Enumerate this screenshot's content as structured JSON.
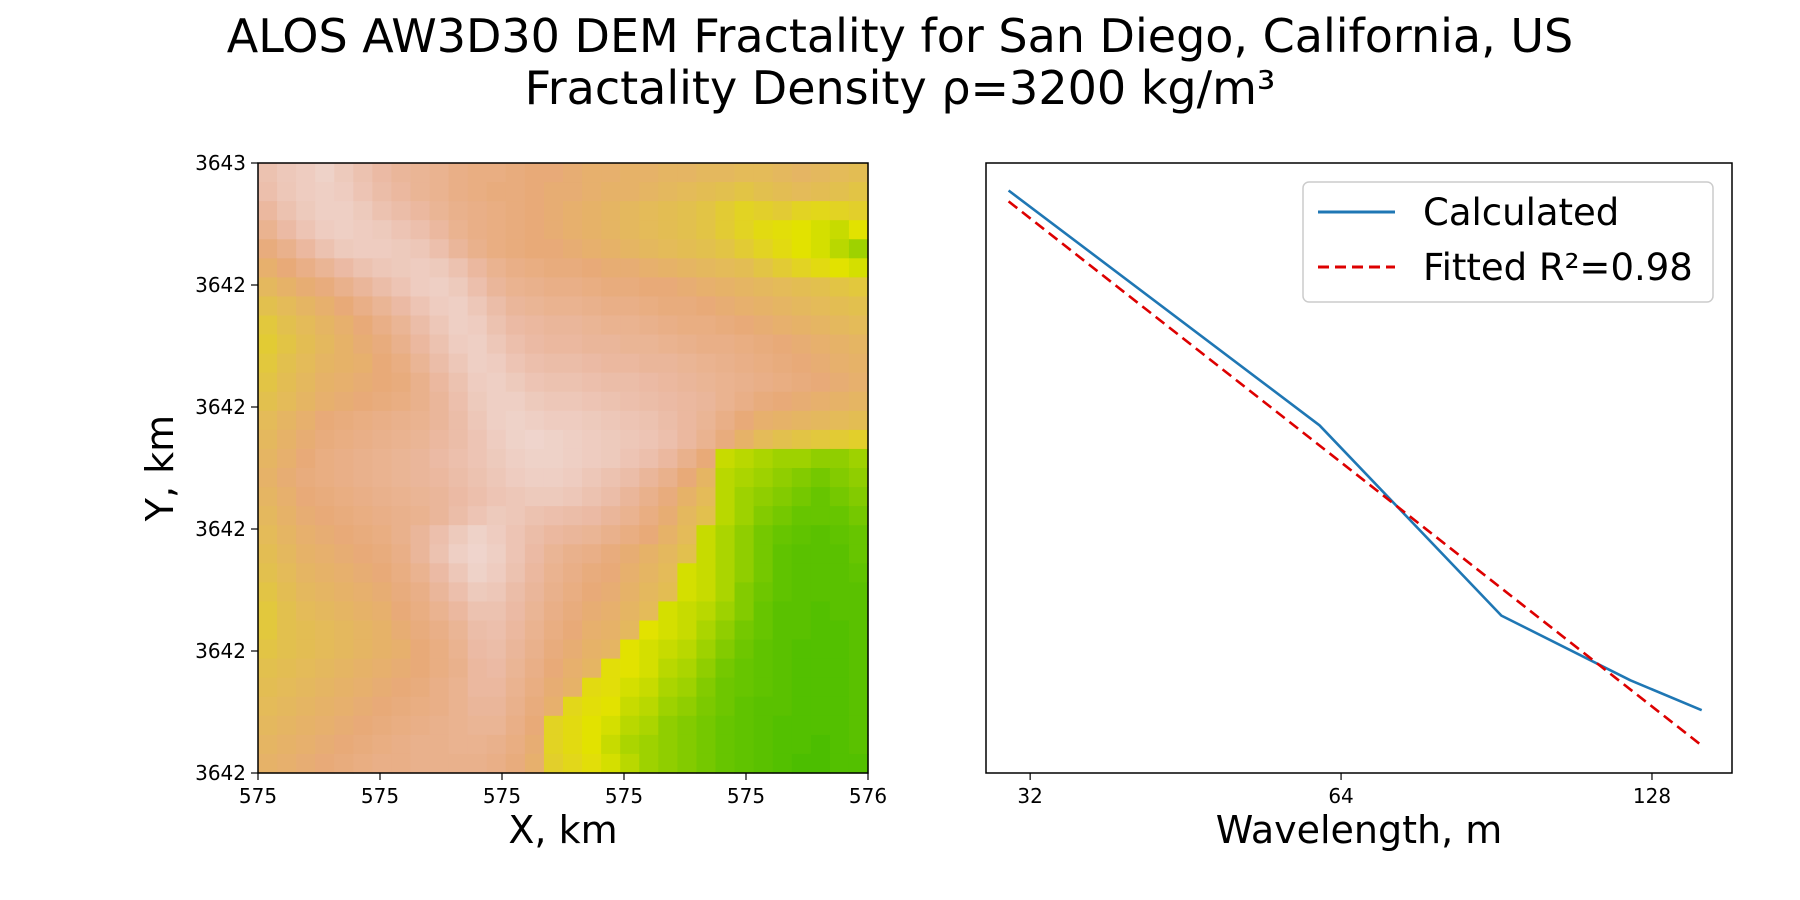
{
  "figure": {
    "title_line1": "ALOS AW3D30 DEM Fractality for San Diego, California, US",
    "title_line2": "Fractality Density ρ=3200 kg/m³"
  },
  "chart_data": [
    {
      "type": "heatmap",
      "xlabel": "X, km",
      "ylabel": "Y, km",
      "x_tick_labels": [
        "575",
        "575",
        "575",
        "575",
        "575",
        "576"
      ],
      "y_tick_labels": [
        "3643",
        "3642",
        "3642",
        "3642",
        "3642",
        "3642"
      ],
      "colormap": "gist_earth-like",
      "colors": {
        "high": "#f0dcd8",
        "mid_high": "#ebbaa4",
        "mid": "#e8aa78",
        "mid_low": "#e2c04e",
        "low": "#e2e200",
        "lowest": "#4cbe00"
      },
      "grid_size": [
        32,
        32
      ],
      "values": [
        [
          0.8,
          0.85,
          0.88,
          0.92,
          0.86,
          0.8,
          0.74,
          0.7,
          0.68,
          0.66,
          0.62,
          0.6,
          0.6,
          0.58,
          0.56,
          0.56,
          0.54,
          0.52,
          0.52,
          0.5,
          0.5,
          0.48,
          0.48,
          0.46,
          0.46,
          0.44,
          0.44,
          0.46,
          0.48,
          0.46,
          0.44,
          0.42
        ],
        [
          0.78,
          0.84,
          0.88,
          0.9,
          0.88,
          0.82,
          0.76,
          0.72,
          0.68,
          0.66,
          0.62,
          0.6,
          0.58,
          0.58,
          0.56,
          0.54,
          0.54,
          0.52,
          0.5,
          0.5,
          0.48,
          0.46,
          0.44,
          0.42,
          0.4,
          0.38,
          0.4,
          0.42,
          0.44,
          0.42,
          0.4,
          0.38
        ],
        [
          0.72,
          0.8,
          0.86,
          0.9,
          0.9,
          0.86,
          0.8,
          0.76,
          0.72,
          0.68,
          0.64,
          0.62,
          0.6,
          0.58,
          0.56,
          0.54,
          0.52,
          0.5,
          0.48,
          0.46,
          0.44,
          0.42,
          0.4,
          0.38,
          0.34,
          0.3,
          0.32,
          0.34,
          0.3,
          0.28,
          0.3,
          0.32
        ],
        [
          0.66,
          0.74,
          0.82,
          0.88,
          0.9,
          0.88,
          0.86,
          0.82,
          0.78,
          0.72,
          0.66,
          0.62,
          0.6,
          0.58,
          0.56,
          0.54,
          0.52,
          0.5,
          0.48,
          0.46,
          0.44,
          0.42,
          0.4,
          0.38,
          0.34,
          0.3,
          0.26,
          0.24,
          0.22,
          0.2,
          0.18,
          0.22
        ],
        [
          0.58,
          0.64,
          0.72,
          0.8,
          0.86,
          0.88,
          0.88,
          0.86,
          0.84,
          0.78,
          0.7,
          0.64,
          0.6,
          0.58,
          0.56,
          0.56,
          0.54,
          0.52,
          0.5,
          0.48,
          0.46,
          0.44,
          0.42,
          0.4,
          0.38,
          0.34,
          0.3,
          0.26,
          0.22,
          0.2,
          0.16,
          0.12
        ],
        [
          0.52,
          0.56,
          0.62,
          0.68,
          0.74,
          0.8,
          0.84,
          0.86,
          0.88,
          0.86,
          0.8,
          0.72,
          0.66,
          0.62,
          0.6,
          0.58,
          0.58,
          0.56,
          0.54,
          0.54,
          0.52,
          0.5,
          0.48,
          0.46,
          0.44,
          0.42,
          0.38,
          0.34,
          0.3,
          0.26,
          0.22,
          0.2
        ],
        [
          0.46,
          0.5,
          0.54,
          0.58,
          0.64,
          0.7,
          0.76,
          0.82,
          0.88,
          0.9,
          0.86,
          0.78,
          0.7,
          0.66,
          0.64,
          0.62,
          0.62,
          0.6,
          0.58,
          0.58,
          0.56,
          0.56,
          0.54,
          0.52,
          0.5,
          0.48,
          0.46,
          0.44,
          0.42,
          0.4,
          0.38,
          0.36
        ],
        [
          0.4,
          0.44,
          0.48,
          0.52,
          0.56,
          0.62,
          0.68,
          0.74,
          0.82,
          0.88,
          0.9,
          0.84,
          0.76,
          0.7,
          0.68,
          0.66,
          0.66,
          0.64,
          0.62,
          0.62,
          0.6,
          0.58,
          0.58,
          0.56,
          0.54,
          0.52,
          0.5,
          0.48,
          0.46,
          0.44,
          0.42,
          0.4
        ],
        [
          0.36,
          0.4,
          0.44,
          0.48,
          0.52,
          0.56,
          0.62,
          0.68,
          0.76,
          0.84,
          0.9,
          0.88,
          0.8,
          0.74,
          0.72,
          0.7,
          0.7,
          0.68,
          0.66,
          0.66,
          0.64,
          0.62,
          0.6,
          0.6,
          0.58,
          0.56,
          0.54,
          0.52,
          0.5,
          0.48,
          0.46,
          0.44
        ],
        [
          0.34,
          0.38,
          0.42,
          0.46,
          0.5,
          0.54,
          0.58,
          0.64,
          0.72,
          0.8,
          0.88,
          0.9,
          0.84,
          0.78,
          0.74,
          0.72,
          0.72,
          0.7,
          0.7,
          0.68,
          0.68,
          0.66,
          0.64,
          0.62,
          0.62,
          0.6,
          0.58,
          0.56,
          0.54,
          0.52,
          0.5,
          0.48
        ],
        [
          0.36,
          0.4,
          0.44,
          0.48,
          0.5,
          0.52,
          0.56,
          0.6,
          0.68,
          0.76,
          0.84,
          0.9,
          0.88,
          0.82,
          0.78,
          0.76,
          0.76,
          0.74,
          0.72,
          0.72,
          0.7,
          0.7,
          0.68,
          0.66,
          0.64,
          0.62,
          0.6,
          0.58,
          0.56,
          0.54,
          0.52,
          0.5
        ],
        [
          0.38,
          0.42,
          0.46,
          0.5,
          0.52,
          0.54,
          0.56,
          0.58,
          0.64,
          0.72,
          0.8,
          0.88,
          0.9,
          0.86,
          0.82,
          0.8,
          0.8,
          0.78,
          0.76,
          0.76,
          0.74,
          0.72,
          0.7,
          0.68,
          0.66,
          0.64,
          0.62,
          0.6,
          0.58,
          0.56,
          0.54,
          0.52
        ],
        [
          0.4,
          0.44,
          0.48,
          0.52,
          0.54,
          0.56,
          0.58,
          0.6,
          0.64,
          0.7,
          0.78,
          0.86,
          0.9,
          0.9,
          0.86,
          0.84,
          0.84,
          0.82,
          0.8,
          0.78,
          0.76,
          0.74,
          0.72,
          0.7,
          0.66,
          0.62,
          0.58,
          0.56,
          0.54,
          0.52,
          0.5,
          0.48
        ],
        [
          0.44,
          0.48,
          0.52,
          0.56,
          0.58,
          0.6,
          0.62,
          0.64,
          0.66,
          0.7,
          0.76,
          0.84,
          0.9,
          0.92,
          0.9,
          0.88,
          0.88,
          0.86,
          0.84,
          0.82,
          0.8,
          0.76,
          0.72,
          0.68,
          0.62,
          0.56,
          0.52,
          0.5,
          0.48,
          0.46,
          0.44,
          0.42
        ],
        [
          0.46,
          0.5,
          0.54,
          0.58,
          0.6,
          0.62,
          0.64,
          0.66,
          0.68,
          0.72,
          0.76,
          0.82,
          0.88,
          0.92,
          0.94,
          0.92,
          0.9,
          0.88,
          0.86,
          0.84,
          0.82,
          0.78,
          0.72,
          0.66,
          0.58,
          0.5,
          0.44,
          0.4,
          0.38,
          0.36,
          0.34,
          0.32
        ],
        [
          0.48,
          0.52,
          0.56,
          0.6,
          0.62,
          0.64,
          0.66,
          0.68,
          0.7,
          0.74,
          0.78,
          0.82,
          0.86,
          0.9,
          0.92,
          0.92,
          0.9,
          0.88,
          0.86,
          0.82,
          0.78,
          0.72,
          0.64,
          0.56,
          0.18,
          0.16,
          0.14,
          0.12,
          0.12,
          0.1,
          0.1,
          0.12
        ],
        [
          0.5,
          0.54,
          0.58,
          0.6,
          0.62,
          0.64,
          0.66,
          0.68,
          0.7,
          0.72,
          0.76,
          0.8,
          0.84,
          0.88,
          0.9,
          0.9,
          0.88,
          0.84,
          0.8,
          0.76,
          0.7,
          0.64,
          0.56,
          0.48,
          0.16,
          0.14,
          0.12,
          0.1,
          0.08,
          0.06,
          0.08,
          0.1
        ],
        [
          0.48,
          0.52,
          0.56,
          0.58,
          0.6,
          0.62,
          0.64,
          0.66,
          0.68,
          0.7,
          0.74,
          0.78,
          0.82,
          0.84,
          0.86,
          0.86,
          0.84,
          0.8,
          0.76,
          0.7,
          0.64,
          0.58,
          0.5,
          0.44,
          0.16,
          0.12,
          0.1,
          0.08,
          0.06,
          0.04,
          0.06,
          0.08
        ],
        [
          0.46,
          0.5,
          0.54,
          0.56,
          0.58,
          0.6,
          0.62,
          0.64,
          0.66,
          0.7,
          0.76,
          0.82,
          0.86,
          0.84,
          0.8,
          0.78,
          0.76,
          0.74,
          0.7,
          0.66,
          0.6,
          0.54,
          0.46,
          0.4,
          0.16,
          0.12,
          0.08,
          0.06,
          0.04,
          0.04,
          0.04,
          0.06
        ],
        [
          0.44,
          0.48,
          0.52,
          0.54,
          0.56,
          0.58,
          0.6,
          0.64,
          0.7,
          0.78,
          0.86,
          0.92,
          0.88,
          0.82,
          0.76,
          0.72,
          0.7,
          0.68,
          0.64,
          0.6,
          0.56,
          0.5,
          0.44,
          0.18,
          0.14,
          0.1,
          0.06,
          0.04,
          0.03,
          0.02,
          0.03,
          0.04
        ],
        [
          0.42,
          0.46,
          0.5,
          0.52,
          0.54,
          0.56,
          0.58,
          0.62,
          0.7,
          0.8,
          0.9,
          0.94,
          0.9,
          0.82,
          0.74,
          0.68,
          0.64,
          0.62,
          0.58,
          0.54,
          0.5,
          0.46,
          0.4,
          0.18,
          0.14,
          0.1,
          0.06,
          0.03,
          0.02,
          0.02,
          0.02,
          0.04
        ],
        [
          0.4,
          0.44,
          0.48,
          0.5,
          0.52,
          0.54,
          0.56,
          0.6,
          0.66,
          0.74,
          0.84,
          0.92,
          0.88,
          0.8,
          0.72,
          0.66,
          0.62,
          0.58,
          0.56,
          0.52,
          0.48,
          0.44,
          0.2,
          0.18,
          0.14,
          0.1,
          0.06,
          0.03,
          0.02,
          0.02,
          0.02,
          0.03
        ],
        [
          0.38,
          0.42,
          0.46,
          0.48,
          0.5,
          0.52,
          0.54,
          0.58,
          0.62,
          0.7,
          0.78,
          0.86,
          0.84,
          0.76,
          0.7,
          0.64,
          0.6,
          0.56,
          0.54,
          0.5,
          0.46,
          0.42,
          0.2,
          0.18,
          0.14,
          0.08,
          0.05,
          0.03,
          0.02,
          0.02,
          0.02,
          0.02
        ],
        [
          0.36,
          0.4,
          0.44,
          0.46,
          0.48,
          0.5,
          0.52,
          0.56,
          0.6,
          0.66,
          0.72,
          0.8,
          0.8,
          0.74,
          0.68,
          0.62,
          0.58,
          0.54,
          0.52,
          0.48,
          0.44,
          0.2,
          0.18,
          0.16,
          0.12,
          0.08,
          0.04,
          0.02,
          0.02,
          0.01,
          0.02,
          0.02
        ],
        [
          0.36,
          0.4,
          0.42,
          0.44,
          0.46,
          0.48,
          0.5,
          0.54,
          0.58,
          0.62,
          0.68,
          0.76,
          0.78,
          0.72,
          0.66,
          0.6,
          0.56,
          0.52,
          0.5,
          0.46,
          0.22,
          0.2,
          0.18,
          0.14,
          0.1,
          0.06,
          0.04,
          0.02,
          0.02,
          0.01,
          0.01,
          0.02
        ],
        [
          0.38,
          0.4,
          0.42,
          0.44,
          0.46,
          0.48,
          0.5,
          0.52,
          0.56,
          0.6,
          0.66,
          0.74,
          0.76,
          0.7,
          0.64,
          0.58,
          0.54,
          0.5,
          0.48,
          0.22,
          0.2,
          0.18,
          0.16,
          0.12,
          0.08,
          0.05,
          0.03,
          0.02,
          0.01,
          0.01,
          0.01,
          0.02
        ],
        [
          0.4,
          0.42,
          0.44,
          0.46,
          0.48,
          0.5,
          0.52,
          0.54,
          0.56,
          0.6,
          0.64,
          0.72,
          0.74,
          0.68,
          0.62,
          0.56,
          0.52,
          0.48,
          0.24,
          0.22,
          0.2,
          0.16,
          0.14,
          0.1,
          0.06,
          0.04,
          0.03,
          0.02,
          0.01,
          0.01,
          0.01,
          0.02
        ],
        [
          0.42,
          0.44,
          0.46,
          0.48,
          0.5,
          0.52,
          0.54,
          0.56,
          0.58,
          0.62,
          0.66,
          0.72,
          0.72,
          0.66,
          0.6,
          0.54,
          0.5,
          0.26,
          0.24,
          0.2,
          0.18,
          0.14,
          0.12,
          0.08,
          0.05,
          0.04,
          0.03,
          0.02,
          0.01,
          0.01,
          0.01,
          0.02
        ],
        [
          0.44,
          0.46,
          0.48,
          0.5,
          0.52,
          0.54,
          0.56,
          0.58,
          0.6,
          0.62,
          0.66,
          0.7,
          0.7,
          0.64,
          0.58,
          0.52,
          0.28,
          0.24,
          0.22,
          0.18,
          0.16,
          0.12,
          0.1,
          0.07,
          0.05,
          0.03,
          0.02,
          0.02,
          0.01,
          0.01,
          0.01,
          0.02
        ],
        [
          0.46,
          0.48,
          0.5,
          0.52,
          0.54,
          0.56,
          0.58,
          0.6,
          0.62,
          0.64,
          0.66,
          0.68,
          0.68,
          0.62,
          0.56,
          0.3,
          0.26,
          0.22,
          0.2,
          0.16,
          0.14,
          0.1,
          0.08,
          0.06,
          0.04,
          0.03,
          0.02,
          0.01,
          0.01,
          0.01,
          0.01,
          0.02
        ],
        [
          0.48,
          0.5,
          0.52,
          0.54,
          0.56,
          0.58,
          0.6,
          0.62,
          0.64,
          0.64,
          0.66,
          0.66,
          0.64,
          0.6,
          0.54,
          0.3,
          0.26,
          0.22,
          0.18,
          0.14,
          0.12,
          0.1,
          0.08,
          0.06,
          0.04,
          0.03,
          0.02,
          0.01,
          0.01,
          0.0,
          0.01,
          0.02
        ],
        [
          0.5,
          0.52,
          0.54,
          0.56,
          0.58,
          0.6,
          0.62,
          0.62,
          0.64,
          0.64,
          0.64,
          0.64,
          0.62,
          0.58,
          0.52,
          0.32,
          0.28,
          0.24,
          0.2,
          0.16,
          0.12,
          0.1,
          0.08,
          0.06,
          0.04,
          0.03,
          0.02,
          0.01,
          0.0,
          0.0,
          0.01,
          0.01
        ]
      ]
    },
    {
      "type": "line",
      "xlabel": "Wavelength, m",
      "ylabel": "",
      "x_scale": "log2",
      "x_ticks": [
        32,
        64,
        128
      ],
      "x_tick_labels": [
        "32",
        "64",
        "128"
      ],
      "xlim": [
        29.0,
        153.0
      ],
      "ylim": [
        0.0,
        1.0
      ],
      "y_ticks_visible": false,
      "legend": {
        "position": "upper right"
      },
      "series": [
        {
          "name": "Calculated",
          "color": "#1f77b4",
          "style": "solid",
          "x": [
            30.5,
            61.0,
            91.5,
            122.0,
            143.0
          ],
          "y": [
            0.955,
            0.57,
            0.258,
            0.152,
            0.103
          ]
        },
        {
          "name": "Fitted R²=0.98",
          "color": "#dd0000",
          "style": "dashed",
          "x": [
            30.5,
            143.0
          ],
          "y": [
            0.937,
            0.045
          ]
        }
      ]
    }
  ]
}
